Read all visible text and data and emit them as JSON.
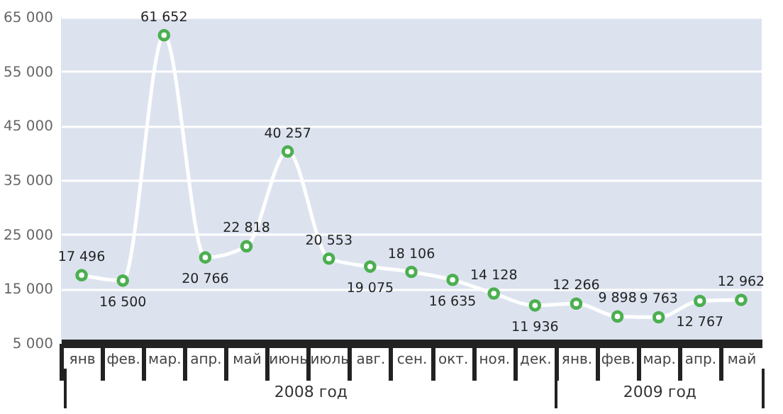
{
  "chart_data": {
    "type": "line",
    "categories": [
      "янв",
      "фев.",
      "мар.",
      "апр.",
      "май",
      "июнь",
      "июль",
      "авг.",
      "сен.",
      "окт.",
      "ноя.",
      "дек.",
      "янв.",
      "фев.",
      "мар.",
      "апр.",
      "май"
    ],
    "series": [
      {
        "color": "#ffffff",
        "values": [
          17496,
          16500,
          61652,
          20766,
          22818,
          40257,
          20553,
          19075,
          18106,
          16635,
          14128,
          11936,
          12266,
          9898,
          9763,
          12767,
          12962
        ],
        "value_labels": [
          "17 496",
          "16 500",
          "61 652",
          "20 766",
          "22 818",
          "40 257",
          "20 553",
          "19 075",
          "18 106",
          "16 635",
          "14 128",
          "11 936",
          "12 266",
          "9 898",
          "9 763",
          "12 767",
          "12 962"
        ]
      }
    ],
    "ylim": [
      5000,
      65000
    ],
    "yticks": [
      {
        "value": 5000,
        "label": "5 000"
      },
      {
        "value": 15000,
        "label": "15 000"
      },
      {
        "value": 25000,
        "label": "25 000"
      },
      {
        "value": 35000,
        "label": "35 000"
      },
      {
        "value": 45000,
        "label": "45 000"
      },
      {
        "value": 55000,
        "label": "55 000"
      },
      {
        "value": 65000,
        "label": "65 000"
      }
    ],
    "grid": "y",
    "marker": "circle",
    "line_style": "solid",
    "annotations": [
      "2008 год",
      "2009 год"
    ]
  }
}
